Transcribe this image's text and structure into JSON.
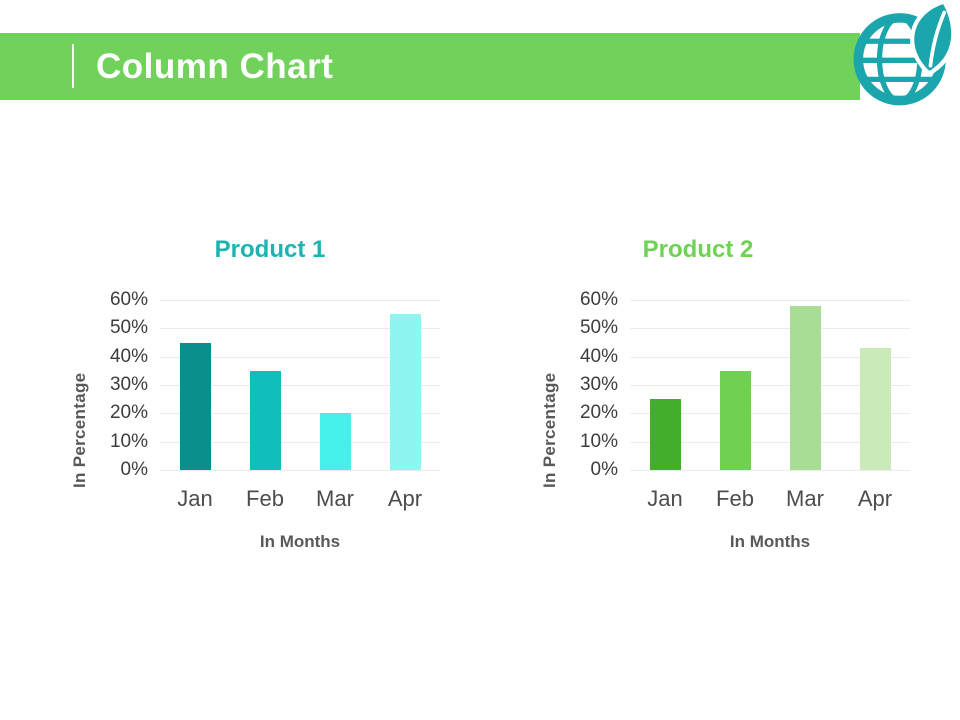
{
  "header": {
    "title": "Column Chart",
    "banner_color": "#70d25a",
    "icon": "globe-leaf-icon",
    "icon_color": "#1ba5ad"
  },
  "chart_data": [
    {
      "type": "bar",
      "title": "Product 1",
      "title_color": "#1db3b1",
      "categories": [
        "Jan",
        "Feb",
        "Mar",
        "Apr"
      ],
      "values": [
        45,
        35,
        20,
        55
      ],
      "bar_colors": [
        "#0a8f8d",
        "#10bfbc",
        "#45f0ea",
        "#8ef5f0"
      ],
      "xlabel": "In Months",
      "ylabel": "In Percentage",
      "ylim": [
        0,
        60
      ],
      "ytick_step": 10,
      "ytick_suffix": "%",
      "grid": true,
      "legend": "none"
    },
    {
      "type": "bar",
      "title": "Product 2",
      "title_color": "#70d254",
      "categories": [
        "Jan",
        "Feb",
        "Mar",
        "Apr"
      ],
      "values": [
        25,
        35,
        58,
        43
      ],
      "bar_colors": [
        "#45ad2c",
        "#6fd152",
        "#a9dc95",
        "#cbeaba"
      ],
      "xlabel": "In Months",
      "ylabel": "In Percentage",
      "ylim": [
        0,
        60
      ],
      "ytick_step": 10,
      "ytick_suffix": "%",
      "grid": true,
      "legend": "none"
    }
  ]
}
